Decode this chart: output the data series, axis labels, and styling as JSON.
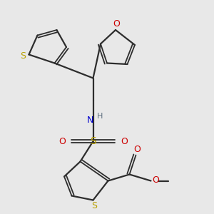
{
  "background_color": "#e8e8e8",
  "bond_color": "#2d2d2d",
  "S_color": "#b8a000",
  "O_color": "#cc0000",
  "N_color": "#0000cc",
  "H_color": "#607080",
  "figsize": [
    3.0,
    3.0
  ],
  "dpi": 100,
  "xlim": [
    0,
    10
  ],
  "ylim": [
    0,
    10
  ]
}
